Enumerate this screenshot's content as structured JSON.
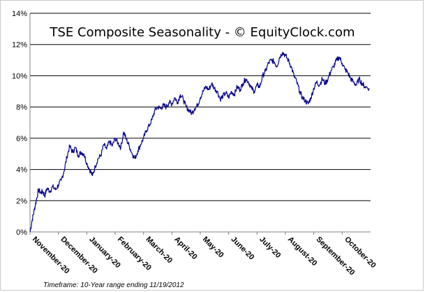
{
  "chart_data": {
    "type": "line",
    "title": "TSE Composite Seasonality - © EquityClock.com",
    "footnote": "Timeframe: 10-Year range ending 11/19/2012",
    "xlabel": "",
    "ylabel": "",
    "ylim": [
      0,
      14
    ],
    "yticks": [
      "0%",
      "2%",
      "4%",
      "6%",
      "8%",
      "10%",
      "12%",
      "14%"
    ],
    "categories": [
      "November-20",
      "December-20",
      "January-20",
      "February-20",
      "March-20",
      "April-20",
      "May-20",
      "June-20",
      "July-20",
      "August-20",
      "September-20",
      "October-20"
    ],
    "grid": true,
    "legend": "none",
    "line_color": "#00008b",
    "series": [
      {
        "x": [
          0.0,
          0.08,
          0.15,
          0.22,
          0.3,
          0.38,
          0.45,
          0.52,
          0.6,
          0.7,
          0.8,
          0.9,
          1.0,
          1.1,
          1.2,
          1.3,
          1.4,
          1.5,
          1.6,
          1.7,
          1.8,
          1.9,
          2.0,
          2.1,
          2.2,
          2.3,
          2.4,
          2.5,
          2.6,
          2.7,
          2.8,
          2.9,
          3.0,
          3.1,
          3.2,
          3.3,
          3.4,
          3.5,
          3.6,
          3.7,
          3.8,
          3.9,
          4.0,
          4.1,
          4.2,
          4.3,
          4.4,
          4.5,
          4.6,
          4.7,
          4.8,
          4.9,
          5.0,
          5.1,
          5.2,
          5.3,
          5.4,
          5.5,
          5.6,
          5.7,
          5.8,
          5.9,
          6.0,
          6.1,
          6.2,
          6.3,
          6.4,
          6.5,
          6.6,
          6.7,
          6.8,
          6.9,
          7.0,
          7.1,
          7.2,
          7.3,
          7.4,
          7.5,
          7.6,
          7.7,
          7.8,
          7.9,
          8.0,
          8.1,
          8.2,
          8.3,
          8.4,
          8.5,
          8.6,
          8.7,
          8.8,
          8.9,
          9.0,
          9.1,
          9.2,
          9.3,
          9.4,
          9.5,
          9.6,
          9.7,
          9.8,
          9.9,
          10.0,
          10.1,
          10.2,
          10.3,
          10.4,
          10.5,
          10.6,
          10.7,
          10.8,
          10.9,
          11.0,
          11.1,
          11.2,
          11.3,
          11.4,
          11.5,
          11.6,
          11.7,
          11.8,
          11.95
        ],
        "values": [
          0.0,
          0.8,
          1.4,
          2.0,
          2.7,
          2.5,
          2.6,
          2.3,
          2.8,
          2.6,
          2.9,
          2.7,
          3.0,
          3.3,
          3.9,
          4.8,
          5.5,
          5.1,
          5.4,
          4.9,
          5.1,
          5.0,
          4.4,
          4.0,
          3.6,
          4.2,
          4.7,
          4.9,
          5.6,
          5.3,
          5.8,
          5.5,
          6.0,
          5.7,
          5.4,
          6.4,
          5.9,
          5.5,
          5.0,
          4.7,
          5.2,
          5.6,
          6.0,
          6.5,
          6.8,
          7.2,
          7.8,
          8.0,
          7.9,
          8.1,
          8.0,
          8.3,
          8.2,
          8.6,
          8.3,
          8.8,
          8.5,
          8.0,
          7.8,
          7.6,
          7.9,
          8.1,
          8.6,
          9.0,
          9.3,
          9.1,
          9.5,
          9.2,
          9.0,
          8.5,
          8.7,
          8.9,
          8.6,
          9.0,
          8.8,
          9.3,
          9.1,
          9.5,
          9.8,
          9.6,
          9.2,
          9.0,
          9.4,
          9.3,
          10.0,
          10.3,
          10.8,
          11.0,
          10.9,
          10.6,
          11.2,
          11.5,
          11.3,
          11.0,
          10.6,
          10.0,
          9.6,
          9.0,
          8.6,
          8.4,
          8.2,
          8.6,
          9.2,
          9.6,
          9.4,
          9.8,
          9.5,
          9.8,
          10.3,
          10.6,
          11.0,
          11.2,
          10.8,
          10.4,
          10.2,
          9.8,
          9.6,
          9.4,
          9.8,
          9.5,
          9.3,
          9.2
        ]
      }
    ]
  }
}
